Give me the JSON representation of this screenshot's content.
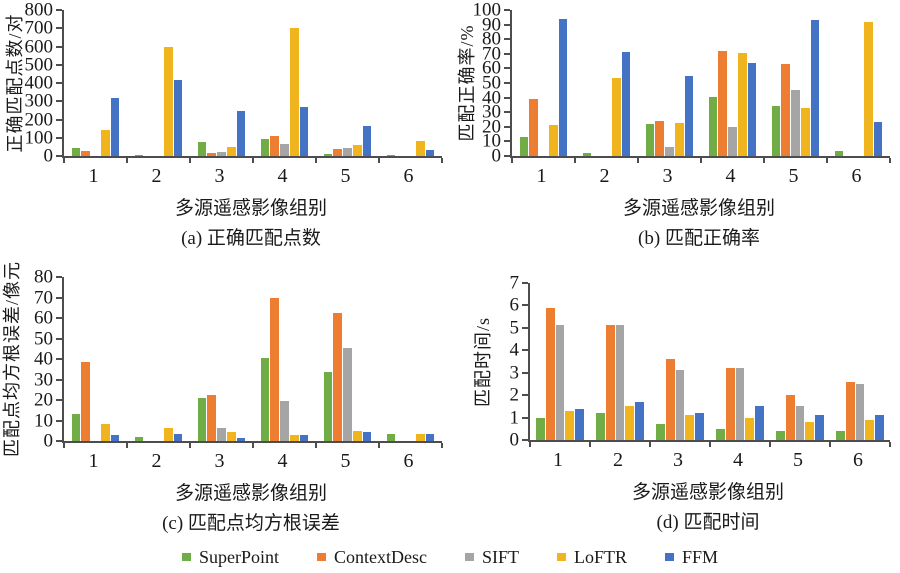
{
  "legend": {
    "items": [
      {
        "label": "SuperPoint",
        "color": "#70AD47"
      },
      {
        "label": "ContextDesc",
        "color": "#ED7D31"
      },
      {
        "label": "SIFT",
        "color": "#A5A5A5"
      },
      {
        "label": "LoFTR",
        "color": "#F0B41E"
      },
      {
        "label": "FFM",
        "color": "#4472C4"
      }
    ],
    "position": "bottom-center"
  },
  "chart_data": [
    {
      "type": "bar",
      "caption": "(a) 正确匹配点数",
      "ylabel": "正确匹配点数/对",
      "xlabel": "多源遥感影像组别",
      "ylim": [
        0,
        800
      ],
      "ytick_step": 100,
      "grid": false,
      "categories": [
        "1",
        "2",
        "3",
        "4",
        "5",
        "6"
      ],
      "series": [
        {
          "name": "SuperPoint",
          "values": [
            45,
            8,
            75,
            95,
            12,
            6
          ]
        },
        {
          "name": "ContextDesc",
          "values": [
            25,
            0,
            15,
            108,
            38,
            0
          ]
        },
        {
          "name": "SIFT",
          "values": [
            0,
            0,
            20,
            68,
            42,
            0
          ]
        },
        {
          "name": "LoFTR",
          "values": [
            145,
            600,
            48,
            703,
            58,
            85
          ]
        },
        {
          "name": "FFM",
          "values": [
            320,
            415,
            248,
            268,
            165,
            32
          ]
        }
      ]
    },
    {
      "type": "bar",
      "caption": "(b) 匹配正确率",
      "ylabel": "匹配正确率/%",
      "xlabel": "多源遥感影像组别",
      "ylim": [
        0,
        100
      ],
      "ytick_step": 10,
      "grid": false,
      "categories": [
        "1",
        "2",
        "3",
        "4",
        "5",
        "6"
      ],
      "series": [
        {
          "name": "SuperPoint",
          "values": [
            13,
            2,
            22,
            40.5,
            34.5,
            3.5
          ]
        },
        {
          "name": "ContextDesc",
          "values": [
            39,
            0,
            24,
            72,
            63,
            0
          ]
        },
        {
          "name": "SIFT",
          "values": [
            0,
            0,
            6,
            20,
            45.5,
            0
          ]
        },
        {
          "name": "LoFTR",
          "values": [
            21,
            53.5,
            22.5,
            70.5,
            33,
            92
          ]
        },
        {
          "name": "FFM",
          "values": [
            94,
            71.5,
            55,
            63.5,
            93,
            23.5
          ]
        }
      ]
    },
    {
      "type": "bar",
      "caption": "(c) 匹配点均方根误差",
      "ylabel": "匹配点均方根误差/像元",
      "xlabel": "多源遥感影像组别",
      "ylim": [
        0,
        80
      ],
      "ytick_step": 10,
      "grid": false,
      "categories": [
        "1",
        "2",
        "3",
        "4",
        "5",
        "6"
      ],
      "series": [
        {
          "name": "SuperPoint",
          "values": [
            13,
            2,
            21,
            40.5,
            33.5,
            3.5
          ]
        },
        {
          "name": "ContextDesc",
          "values": [
            38.5,
            0,
            22.5,
            70,
            62.5,
            0
          ]
        },
        {
          "name": "SIFT",
          "values": [
            0,
            0,
            6.5,
            19.5,
            45.5,
            0
          ]
        },
        {
          "name": "LoFTR",
          "values": [
            8.5,
            6.5,
            4.5,
            3,
            5,
            3.5
          ]
        },
        {
          "name": "FFM",
          "values": [
            3,
            3.5,
            1.5,
            3,
            4.5,
            3.5
          ]
        }
      ]
    },
    {
      "type": "bar",
      "caption": "(d) 匹配时间",
      "ylabel": "匹配时间/s",
      "xlabel": "多源遥感影像组别",
      "ylim": [
        0,
        7
      ],
      "ytick_step": 1,
      "grid": false,
      "categories": [
        "1",
        "2",
        "3",
        "4",
        "5",
        "6"
      ],
      "series": [
        {
          "name": "SuperPoint",
          "values": [
            1.0,
            1.2,
            0.7,
            0.5,
            0.4,
            0.4
          ]
        },
        {
          "name": "ContextDesc",
          "values": [
            5.9,
            5.15,
            3.6,
            3.2,
            2.0,
            2.6
          ]
        },
        {
          "name": "SIFT",
          "values": [
            5.15,
            5.15,
            3.1,
            3.2,
            1.5,
            2.5
          ]
        },
        {
          "name": "LoFTR",
          "values": [
            1.3,
            1.5,
            1.1,
            1.0,
            0.8,
            0.9
          ]
        },
        {
          "name": "FFM",
          "values": [
            1.4,
            1.7,
            1.2,
            1.5,
            1.1,
            1.1
          ]
        }
      ]
    }
  ]
}
